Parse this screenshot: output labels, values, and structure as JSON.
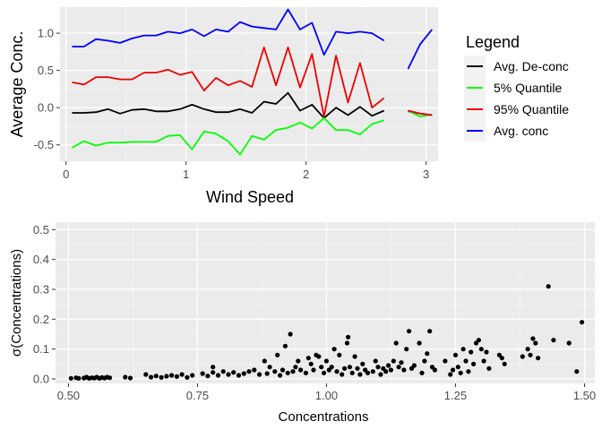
{
  "chart_data": [
    {
      "type": "line",
      "xlabel": "Wind Speed",
      "ylabel": "Average Conc.",
      "xlim": [
        -0.05,
        3.1
      ],
      "ylim": [
        -0.72,
        1.35
      ],
      "xticks": [
        0,
        1,
        2,
        3
      ],
      "yticks": [
        -0.5,
        0.0,
        0.5,
        1.0
      ],
      "ytick_labels": [
        "-0.5",
        "0.0",
        "0.5",
        "1.0"
      ],
      "grid": true,
      "legend": {
        "title": "Legend",
        "placement": "right",
        "entries": [
          "Avg. De-conc",
          "5% Quantile",
          "95% Quantile",
          "Avg. conc"
        ]
      },
      "series": [
        {
          "name": "Avg. De-conc",
          "color": "#000000",
          "segments": [
            {
              "x": [
                0.05,
                0.15,
                0.25,
                0.35,
                0.45,
                0.55,
                0.65,
                0.75,
                0.85,
                0.95,
                1.05,
                1.15,
                1.25,
                1.35,
                1.45,
                1.55,
                1.65,
                1.75,
                1.85,
                1.95,
                2.05,
                2.15,
                2.25,
                2.35,
                2.45,
                2.55,
                2.65
              ],
              "y": [
                -0.07,
                -0.07,
                -0.06,
                -0.02,
                -0.08,
                -0.03,
                -0.02,
                -0.05,
                -0.05,
                -0.02,
                0.04,
                -0.02,
                -0.06,
                -0.06,
                -0.02,
                -0.07,
                0.08,
                0.05,
                0.2,
                -0.04,
                0.04,
                -0.14,
                0.0,
                -0.1,
                0.01,
                -0.11,
                -0.04
              ]
            },
            {
              "x": [
                2.85,
                2.95,
                3.05
              ],
              "y": [
                -0.05,
                -0.08,
                -0.1
              ]
            }
          ]
        },
        {
          "name": "5% Quantile",
          "color": "#00ff00",
          "segments": [
            {
              "x": [
                0.05,
                0.15,
                0.25,
                0.35,
                0.45,
                0.55,
                0.65,
                0.75,
                0.85,
                0.95,
                1.05,
                1.15,
                1.25,
                1.35,
                1.45,
                1.55,
                1.65,
                1.75,
                1.85,
                1.95,
                2.05,
                2.15,
                2.25,
                2.35,
                2.45,
                2.55,
                2.65
              ],
              "y": [
                -0.54,
                -0.45,
                -0.51,
                -0.47,
                -0.47,
                -0.46,
                -0.46,
                -0.46,
                -0.38,
                -0.37,
                -0.56,
                -0.32,
                -0.35,
                -0.45,
                -0.63,
                -0.38,
                -0.43,
                -0.3,
                -0.27,
                -0.2,
                -0.28,
                -0.14,
                -0.3,
                -0.3,
                -0.36,
                -0.22,
                -0.17
              ]
            },
            {
              "x": [
                2.85,
                2.95,
                3.05
              ],
              "y": [
                -0.04,
                -0.12,
                -0.09
              ]
            }
          ]
        },
        {
          "name": "95% Quantile",
          "color": "#ee0000",
          "segments": [
            {
              "x": [
                0.05,
                0.15,
                0.25,
                0.35,
                0.45,
                0.55,
                0.65,
                0.75,
                0.85,
                0.95,
                1.05,
                1.15,
                1.25,
                1.35,
                1.45,
                1.55,
                1.65,
                1.75,
                1.85,
                1.95,
                2.05,
                2.15,
                2.25,
                2.35,
                2.45,
                2.55,
                2.65
              ],
              "y": [
                0.34,
                0.31,
                0.41,
                0.41,
                0.38,
                0.38,
                0.47,
                0.47,
                0.51,
                0.44,
                0.48,
                0.23,
                0.4,
                0.3,
                0.36,
                0.28,
                0.81,
                0.3,
                0.81,
                0.27,
                0.72,
                -0.12,
                0.7,
                0.07,
                0.6,
                0.0,
                0.13
              ]
            },
            {
              "x": [
                2.85,
                2.95,
                3.05
              ],
              "y": [
                -0.04,
                -0.08,
                -0.1
              ]
            }
          ]
        },
        {
          "name": "Avg. conc",
          "color": "#0000ff",
          "segments": [
            {
              "x": [
                0.05,
                0.15,
                0.25,
                0.35,
                0.45,
                0.55,
                0.65,
                0.75,
                0.85,
                0.95,
                1.05,
                1.15,
                1.25,
                1.35,
                1.45,
                1.55,
                1.65,
                1.75,
                1.85,
                1.95,
                2.05,
                2.15,
                2.25,
                2.35,
                2.45,
                2.55,
                2.65
              ],
              "y": [
                0.82,
                0.82,
                0.92,
                0.9,
                0.87,
                0.93,
                0.97,
                0.97,
                1.02,
                1.0,
                1.05,
                0.96,
                1.05,
                1.02,
                1.15,
                1.09,
                1.07,
                1.05,
                1.32,
                1.05,
                1.14,
                0.71,
                1.02,
                1.0,
                1.02,
                1.0,
                0.9
              ]
            },
            {
              "x": [
                2.85,
                2.95,
                3.05
              ],
              "y": [
                0.52,
                0.85,
                1.05
              ]
            }
          ]
        }
      ]
    },
    {
      "type": "scatter",
      "xlabel": "Concentrations",
      "ylabel": "σ(Concentrations)",
      "xlim": [
        0.475,
        1.52
      ],
      "ylim": [
        -0.015,
        0.525
      ],
      "xticks": [
        0.5,
        0.75,
        1.0,
        1.25,
        1.5
      ],
      "xtick_labels": [
        "0.50",
        "0.75",
        "1.00",
        "1.25",
        "1.50"
      ],
      "yticks": [
        0.0,
        0.1,
        0.2,
        0.3,
        0.4,
        0.5
      ],
      "ytick_labels": [
        "0.0",
        "0.1",
        "0.2",
        "0.3",
        "0.4",
        "0.5"
      ],
      "grid": true,
      "color": "#000000",
      "points": [
        [
          0.505,
          0.002
        ],
        [
          0.515,
          0.004
        ],
        [
          0.52,
          0.002
        ],
        [
          0.53,
          0.003
        ],
        [
          0.535,
          0.006
        ],
        [
          0.54,
          0.002
        ],
        [
          0.545,
          0.004
        ],
        [
          0.55,
          0.003
        ],
        [
          0.555,
          0.006
        ],
        [
          0.56,
          0.002
        ],
        [
          0.565,
          0.005
        ],
        [
          0.57,
          0.003
        ],
        [
          0.575,
          0.006
        ],
        [
          0.58,
          0.004
        ],
        [
          0.61,
          0.006
        ],
        [
          0.62,
          0.003
        ],
        [
          0.65,
          0.015
        ],
        [
          0.66,
          0.006
        ],
        [
          0.67,
          0.01
        ],
        [
          0.68,
          0.005
        ],
        [
          0.69,
          0.009
        ],
        [
          0.7,
          0.012
        ],
        [
          0.71,
          0.008
        ],
        [
          0.72,
          0.015
        ],
        [
          0.73,
          0.005
        ],
        [
          0.74,
          0.012
        ],
        [
          0.76,
          0.018
        ],
        [
          0.77,
          0.01
        ],
        [
          0.78,
          0.022
        ],
        [
          0.78,
          0.04
        ],
        [
          0.79,
          0.012
        ],
        [
          0.8,
          0.025
        ],
        [
          0.81,
          0.015
        ],
        [
          0.82,
          0.022
        ],
        [
          0.83,
          0.012
        ],
        [
          0.84,
          0.018
        ],
        [
          0.85,
          0.025
        ],
        [
          0.86,
          0.03
        ],
        [
          0.87,
          0.015
        ],
        [
          0.88,
          0.06
        ],
        [
          0.885,
          0.018
        ],
        [
          0.89,
          0.04
        ],
        [
          0.9,
          0.025
        ],
        [
          0.905,
          0.08
        ],
        [
          0.91,
          0.012
        ],
        [
          0.915,
          0.03
        ],
        [
          0.92,
          0.11
        ],
        [
          0.925,
          0.02
        ],
        [
          0.93,
          0.15
        ],
        [
          0.935,
          0.025
        ],
        [
          0.94,
          0.04
        ],
        [
          0.945,
          0.06
        ],
        [
          0.95,
          0.03
        ],
        [
          0.96,
          0.02
        ],
        [
          0.965,
          0.07
        ],
        [
          0.97,
          0.05
        ],
        [
          0.975,
          0.03
        ],
        [
          0.98,
          0.08
        ],
        [
          0.985,
          0.075
        ],
        [
          0.99,
          0.04
        ],
        [
          0.995,
          0.02
        ],
        [
          1.0,
          0.06
        ],
        [
          1.005,
          0.03
        ],
        [
          1.01,
          0.04
        ],
        [
          1.015,
          0.1
        ],
        [
          1.02,
          0.025
        ],
        [
          1.025,
          0.08
        ],
        [
          1.03,
          0.015
        ],
        [
          1.035,
          0.035
        ],
        [
          1.04,
          0.12
        ],
        [
          1.042,
          0.14
        ],
        [
          1.045,
          0.04
        ],
        [
          1.05,
          0.02
        ],
        [
          1.055,
          0.075
        ],
        [
          1.06,
          0.035
        ],
        [
          1.065,
          0.015
        ],
        [
          1.07,
          0.05
        ],
        [
          1.075,
          0.03
        ],
        [
          1.08,
          0.02
        ],
        [
          1.09,
          0.025
        ],
        [
          1.095,
          0.06
        ],
        [
          1.1,
          0.04
        ],
        [
          1.105,
          0.015
        ],
        [
          1.11,
          0.035
        ],
        [
          1.115,
          0.025
        ],
        [
          1.12,
          0.045
        ],
        [
          1.125,
          0.03
        ],
        [
          1.13,
          0.06
        ],
        [
          1.135,
          0.12
        ],
        [
          1.14,
          0.04
        ],
        [
          1.145,
          0.055
        ],
        [
          1.15,
          0.03
        ],
        [
          1.155,
          0.1
        ],
        [
          1.16,
          0.16
        ],
        [
          1.165,
          0.035
        ],
        [
          1.17,
          0.045
        ],
        [
          1.18,
          0.12
        ],
        [
          1.185,
          0.02
        ],
        [
          1.19,
          0.06
        ],
        [
          1.195,
          0.085
        ],
        [
          1.2,
          0.16
        ],
        [
          1.205,
          0.04
        ],
        [
          1.21,
          0.03
        ],
        [
          1.23,
          0.06
        ],
        [
          1.24,
          0.015
        ],
        [
          1.245,
          0.03
        ],
        [
          1.25,
          0.08
        ],
        [
          1.255,
          0.04
        ],
        [
          1.26,
          0.02
        ],
        [
          1.265,
          0.1
        ],
        [
          1.27,
          0.06
        ],
        [
          1.275,
          0.025
        ],
        [
          1.28,
          0.09
        ],
        [
          1.285,
          0.05
        ],
        [
          1.29,
          0.12
        ],
        [
          1.295,
          0.13
        ],
        [
          1.3,
          0.1
        ],
        [
          1.305,
          0.06
        ],
        [
          1.31,
          0.09
        ],
        [
          1.315,
          0.035
        ],
        [
          1.335,
          0.08
        ],
        [
          1.34,
          0.07
        ],
        [
          1.345,
          0.05
        ],
        [
          1.38,
          0.075
        ],
        [
          1.39,
          0.1
        ],
        [
          1.395,
          0.08
        ],
        [
          1.4,
          0.135
        ],
        [
          1.405,
          0.12
        ],
        [
          1.41,
          0.07
        ],
        [
          1.43,
          0.31
        ],
        [
          1.44,
          0.13
        ],
        [
          1.47,
          0.12
        ],
        [
          1.485,
          0.025
        ],
        [
          1.495,
          0.19
        ]
      ]
    }
  ]
}
